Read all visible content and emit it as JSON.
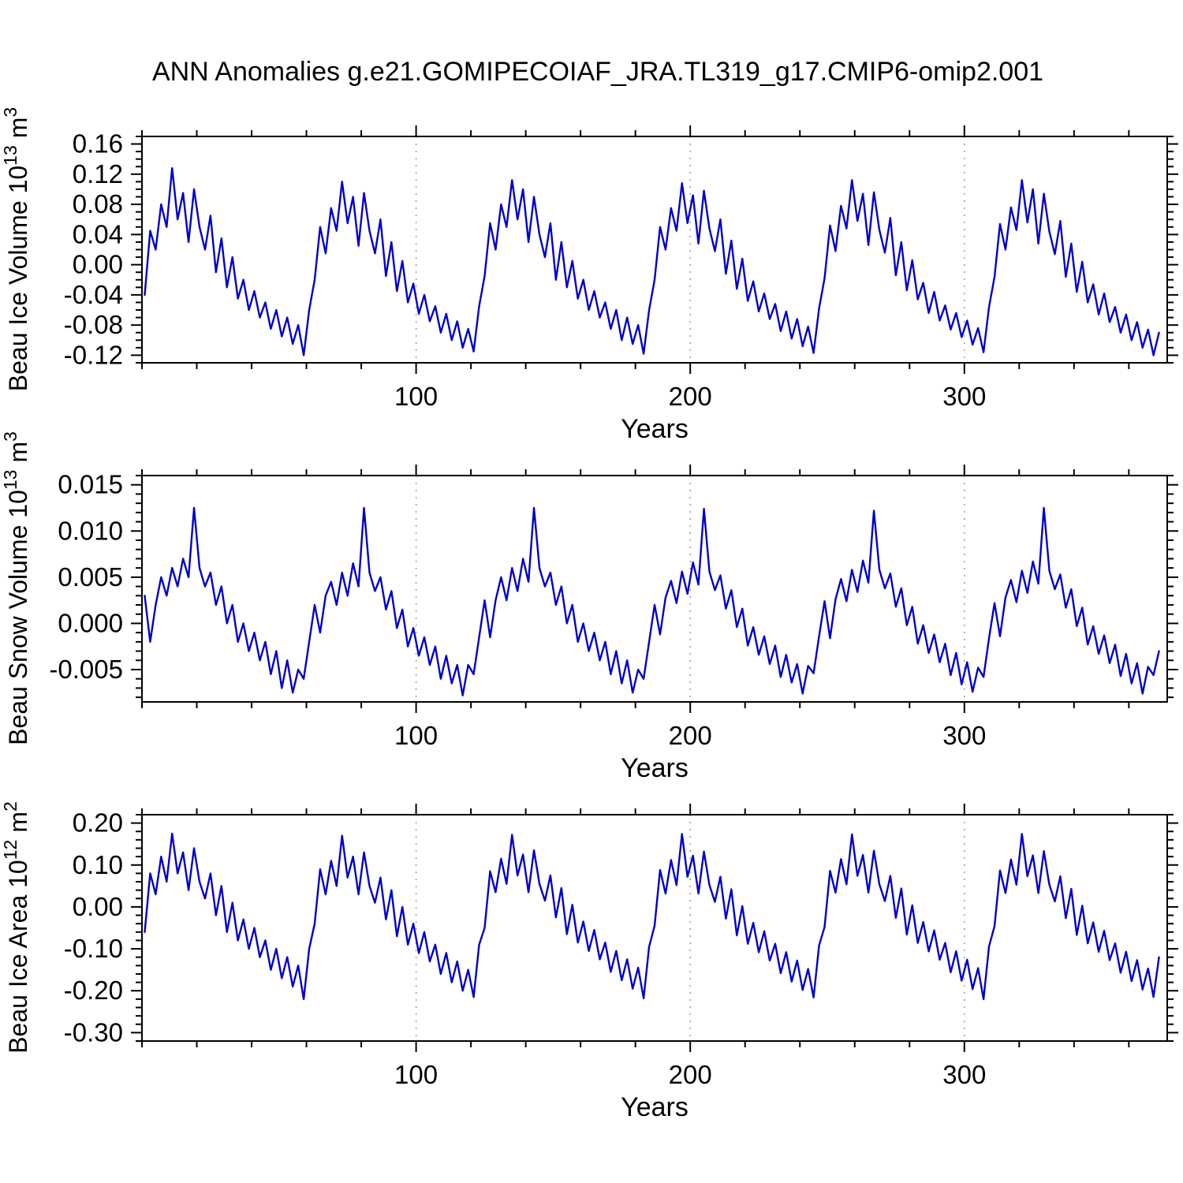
{
  "title": "ANN Anomalies g.e21.GOMIPECOIAF_JRA.TL319_g17.CMIP6-omip2.001",
  "line_color": "#0000cd",
  "grid_color": "#9a9a9a",
  "chart_data": [
    {
      "type": "line",
      "name": "beau-ice-volume-anomaly",
      "ylabel": "Beau Ice Volume 10^13 m^3",
      "ylabel_parts": {
        "base": "Beau Ice Volume 10",
        "exp": "13",
        "unit": "m",
        "unit_exp": "3"
      },
      "xlabel": "Years",
      "xlim": [
        0,
        374
      ],
      "ylim": [
        -0.13,
        0.17
      ],
      "x_start": 1,
      "x_step": 2,
      "xtick_values": [
        100,
        200,
        300
      ],
      "xtick_labels": [
        "100",
        "200",
        "300"
      ],
      "x_minor": 20,
      "ytick_values": [
        0.16,
        0.12,
        0.08,
        0.04,
        0,
        -0.04,
        -0.08,
        -0.12
      ],
      "ytick_labels": [
        "0.16",
        "0.12",
        "0.08",
        "0.04",
        "0.00",
        "-0.04",
        "-0.08",
        "-0.12"
      ],
      "y_minor": 0.01,
      "gridlines_x": [
        100,
        200,
        300
      ],
      "values": [
        -0.04,
        0.045,
        0.02,
        0.08,
        0.05,
        0.128,
        0.06,
        0.095,
        0.03,
        0.1,
        0.05,
        0.02,
        0.065,
        -0.01,
        0.035,
        -0.03,
        0.01,
        -0.045,
        -0.02,
        -0.06,
        -0.035,
        -0.07,
        -0.05,
        -0.085,
        -0.06,
        -0.095,
        -0.07,
        -0.105,
        -0.08,
        -0.12,
        -0.06,
        -0.02,
        0.05,
        0.015,
        0.075,
        0.045,
        0.11,
        0.055,
        0.09,
        0.025,
        0.095,
        0.045,
        0.015,
        0.06,
        -0.015,
        0.03,
        -0.035,
        0.005,
        -0.05,
        -0.025,
        -0.065,
        -0.04,
        -0.075,
        -0.055,
        -0.09,
        -0.065,
        -0.1,
        -0.075,
        -0.11,
        -0.085,
        -0.115,
        -0.055,
        -0.015,
        0.055,
        0.02,
        0.08,
        0.05,
        0.112,
        0.06,
        0.1,
        0.03,
        0.09,
        0.04,
        0.01,
        0.055,
        -0.02,
        0.03,
        -0.03,
        0.005,
        -0.045,
        -0.02,
        -0.06,
        -0.035,
        -0.07,
        -0.05,
        -0.085,
        -0.06,
        -0.1,
        -0.07,
        -0.105,
        -0.08,
        -0.118,
        -0.06,
        -0.02,
        0.05,
        0.02,
        0.075,
        0.045,
        0.108,
        0.055,
        0.092,
        0.028,
        0.098,
        0.048,
        0.018,
        0.06,
        -0.012,
        0.032,
        -0.032,
        0.008,
        -0.048,
        -0.022,
        -0.062,
        -0.038,
        -0.072,
        -0.052,
        -0.088,
        -0.062,
        -0.098,
        -0.072,
        -0.108,
        -0.082,
        -0.117,
        -0.058,
        -0.018,
        0.052,
        0.018,
        0.078,
        0.048,
        0.112,
        0.058,
        0.094,
        0.026,
        0.096,
        0.046,
        0.016,
        0.062,
        -0.014,
        0.03,
        -0.034,
        0.006,
        -0.046,
        -0.024,
        -0.064,
        -0.036,
        -0.074,
        -0.054,
        -0.086,
        -0.064,
        -0.096,
        -0.074,
        -0.106,
        -0.084,
        -0.116,
        -0.056,
        -0.016,
        0.054,
        0.02,
        0.076,
        0.046,
        0.112,
        0.056,
        0.1,
        0.028,
        0.094,
        0.044,
        0.014,
        0.058,
        -0.016,
        0.028,
        -0.036,
        0.004,
        -0.05,
        -0.026,
        -0.066,
        -0.038,
        -0.076,
        -0.056,
        -0.09,
        -0.066,
        -0.1,
        -0.076,
        -0.11,
        -0.086,
        -0.12,
        -0.09
      ]
    },
    {
      "type": "line",
      "name": "beau-snow-volume-anomaly",
      "ylabel": "Beau Snow Volume 10^13 m^3",
      "ylabel_parts": {
        "base": "Beau Snow Volume 10",
        "exp": "13",
        "unit": "m",
        "unit_exp": "3"
      },
      "xlabel": "Years",
      "xlim": [
        0,
        374
      ],
      "ylim": [
        -0.0085,
        0.016
      ],
      "x_start": 1,
      "x_step": 2,
      "xtick_values": [
        100,
        200,
        300
      ],
      "xtick_labels": [
        "100",
        "200",
        "300"
      ],
      "x_minor": 20,
      "ytick_values": [
        0.015,
        0.01,
        0.005,
        0,
        -0.005
      ],
      "ytick_labels": [
        "0.015",
        "0.010",
        "0.005",
        "0.000",
        "-0.005"
      ],
      "y_minor": 0.001,
      "gridlines_x": [
        100,
        200,
        300
      ],
      "values": [
        0.003,
        -0.002,
        0.002,
        0.005,
        0.003,
        0.006,
        0.004,
        0.007,
        0.005,
        0.0125,
        0.006,
        0.004,
        0.0055,
        0.002,
        0.004,
        0,
        0.002,
        -0.002,
        0,
        -0.003,
        -0.001,
        -0.004,
        -0.002,
        -0.0055,
        -0.003,
        -0.007,
        -0.004,
        -0.0075,
        -0.005,
        -0.006,
        -0.002,
        0.002,
        -0.001,
        0.003,
        0.0045,
        0.002,
        0.0055,
        0.003,
        0.0065,
        0.004,
        0.0125,
        0.0055,
        0.0035,
        0.005,
        0.0015,
        0.0035,
        -0.0005,
        0.0015,
        -0.0025,
        -0.0005,
        -0.0035,
        -0.0015,
        -0.0045,
        -0.0025,
        -0.006,
        -0.0035,
        -0.0065,
        -0.0045,
        -0.0078,
        -0.0045,
        -0.0055,
        -0.0015,
        0.0025,
        -0.0015,
        0.0025,
        0.005,
        0.0025,
        0.006,
        0.0035,
        0.007,
        0.0045,
        0.0125,
        0.006,
        0.004,
        0.0055,
        0.002,
        0.004,
        0,
        0.002,
        -0.002,
        0,
        -0.003,
        -0.001,
        -0.004,
        -0.002,
        -0.0055,
        -0.003,
        -0.0065,
        -0.004,
        -0.0075,
        -0.005,
        -0.006,
        -0.002,
        0.002,
        -0.0012,
        0.0028,
        0.0046,
        0.0022,
        0.0056,
        0.0032,
        0.0066,
        0.0042,
        0.0124,
        0.0056,
        0.0036,
        0.0052,
        0.0016,
        0.0036,
        -0.0004,
        0.0016,
        -0.0024,
        -0.0004,
        -0.0034,
        -0.0014,
        -0.0044,
        -0.0024,
        -0.0058,
        -0.0034,
        -0.0064,
        -0.0044,
        -0.0076,
        -0.0046,
        -0.0054,
        -0.0014,
        0.0024,
        -0.0016,
        0.0026,
        0.0048,
        0.0024,
        0.0058,
        0.0034,
        0.0068,
        0.0044,
        0.0122,
        0.0058,
        0.0038,
        0.0054,
        0.0018,
        0.0038,
        -0.0002,
        0.0018,
        -0.0022,
        -0.0002,
        -0.0032,
        -0.0012,
        -0.0042,
        -0.0022,
        -0.0056,
        -0.0032,
        -0.0066,
        -0.0042,
        -0.0074,
        -0.0048,
        -0.0058,
        -0.0016,
        0.0022,
        -0.0014,
        0.0028,
        0.0047,
        0.0023,
        0.0057,
        0.0033,
        0.0067,
        0.0043,
        0.0125,
        0.0057,
        0.0037,
        0.0053,
        0.0017,
        0.0037,
        -0.0003,
        0.0017,
        -0.0023,
        -0.0003,
        -0.0033,
        -0.0013,
        -0.0043,
        -0.0023,
        -0.0057,
        -0.0033,
        -0.0065,
        -0.0043,
        -0.0076,
        -0.0047,
        -0.0056,
        -0.003
      ]
    },
    {
      "type": "line",
      "name": "beau-ice-area-anomaly",
      "ylabel": "Beau Ice Area 10^12 m^2",
      "ylabel_parts": {
        "base": "Beau Ice Area 10",
        "exp": "12",
        "unit": "m",
        "unit_exp": "2"
      },
      "xlabel": "Years",
      "xlim": [
        0,
        374
      ],
      "ylim": [
        -0.32,
        0.22
      ],
      "x_start": 1,
      "x_step": 2,
      "xtick_values": [
        100,
        200,
        300
      ],
      "xtick_labels": [
        "100",
        "200",
        "300"
      ],
      "x_minor": 20,
      "ytick_values": [
        0.2,
        0.1,
        0,
        -0.1,
        -0.2,
        -0.3
      ],
      "ytick_labels": [
        "0.20",
        "0.10",
        "0.00",
        "-0.10",
        "-0.20",
        "-0.30"
      ],
      "y_minor": 0.02,
      "gridlines_x": [
        100,
        200,
        300
      ],
      "values": [
        -0.06,
        0.08,
        0.03,
        0.12,
        0.06,
        0.175,
        0.08,
        0.13,
        0.04,
        0.14,
        0.06,
        0.02,
        0.08,
        -0.02,
        0.05,
        -0.06,
        0.01,
        -0.08,
        -0.03,
        -0.1,
        -0.05,
        -0.12,
        -0.08,
        -0.15,
        -0.1,
        -0.17,
        -0.12,
        -0.19,
        -0.14,
        -0.22,
        -0.1,
        -0.04,
        0.09,
        0.03,
        0.11,
        0.05,
        0.17,
        0.07,
        0.12,
        0.03,
        0.13,
        0.05,
        0.01,
        0.07,
        -0.03,
        0.04,
        -0.07,
        0,
        -0.09,
        -0.04,
        -0.11,
        -0.06,
        -0.13,
        -0.09,
        -0.16,
        -0.11,
        -0.18,
        -0.13,
        -0.2,
        -0.15,
        -0.215,
        -0.09,
        -0.05,
        0.085,
        0.035,
        0.115,
        0.055,
        0.172,
        0.075,
        0.125,
        0.035,
        0.135,
        0.055,
        0.015,
        0.075,
        -0.025,
        0.045,
        -0.065,
        0.005,
        -0.085,
        -0.035,
        -0.105,
        -0.055,
        -0.125,
        -0.085,
        -0.155,
        -0.105,
        -0.175,
        -0.125,
        -0.195,
        -0.145,
        -0.218,
        -0.095,
        -0.045,
        0.088,
        0.032,
        0.112,
        0.052,
        0.174,
        0.072,
        0.122,
        0.032,
        0.132,
        0.052,
        0.012,
        0.072,
        -0.028,
        0.042,
        -0.068,
        0.002,
        -0.088,
        -0.038,
        -0.108,
        -0.058,
        -0.128,
        -0.088,
        -0.158,
        -0.108,
        -0.178,
        -0.128,
        -0.198,
        -0.148,
        -0.216,
        -0.092,
        -0.048,
        0.086,
        0.034,
        0.114,
        0.054,
        0.173,
        0.074,
        0.124,
        0.034,
        0.134,
        0.054,
        0.014,
        0.074,
        -0.026,
        0.044,
        -0.066,
        0.004,
        -0.086,
        -0.036,
        -0.106,
        -0.056,
        -0.126,
        -0.086,
        -0.156,
        -0.106,
        -0.176,
        -0.126,
        -0.196,
        -0.146,
        -0.22,
        -0.094,
        -0.046,
        0.087,
        0.033,
        0.113,
        0.053,
        0.174,
        0.073,
        0.123,
        0.033,
        0.133,
        0.053,
        0.013,
        0.073,
        -0.027,
        0.043,
        -0.067,
        0.003,
        -0.087,
        -0.037,
        -0.107,
        -0.057,
        -0.127,
        -0.087,
        -0.157,
        -0.107,
        -0.177,
        -0.127,
        -0.197,
        -0.147,
        -0.215,
        -0.12
      ]
    }
  ]
}
